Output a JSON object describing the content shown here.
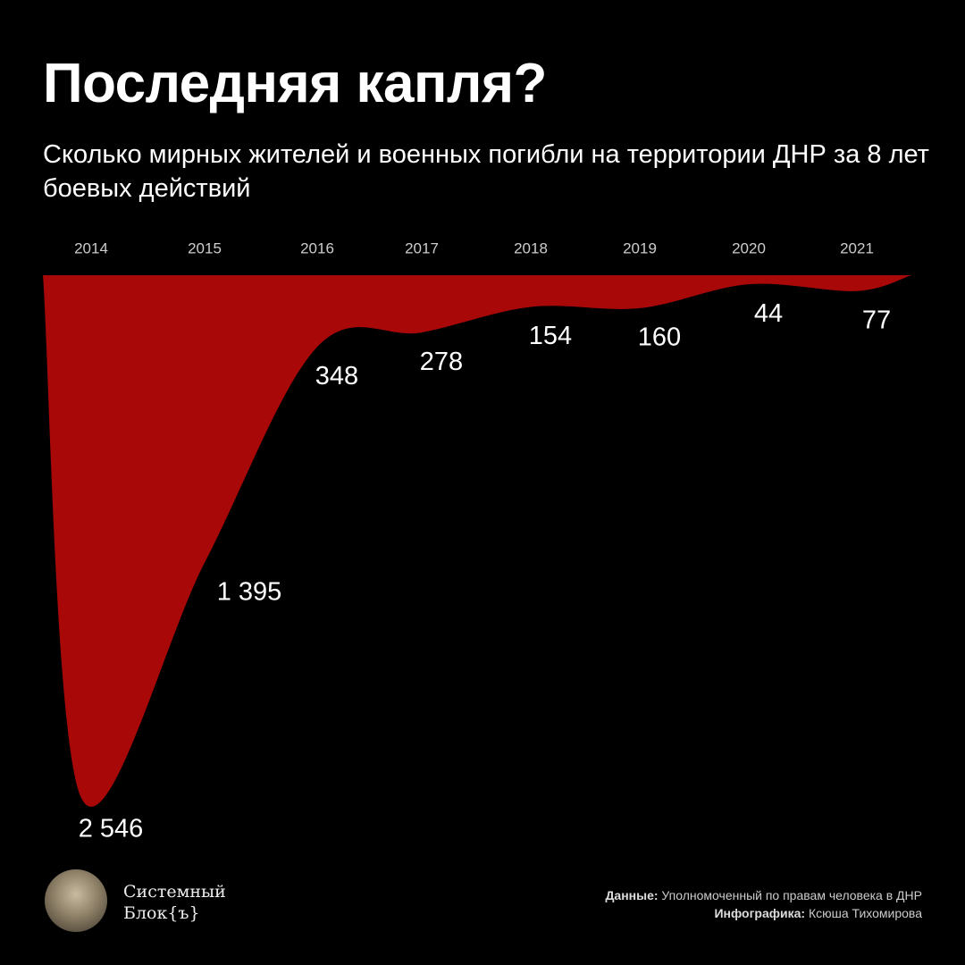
{
  "title": "Последняя капля?",
  "subtitle": "Сколько мирных жителей и военных погибли на территории ДНР за 8 лет боевых действий",
  "chart_data": {
    "type": "area-down",
    "categories": [
      "2014",
      "2015",
      "2016",
      "2017",
      "2018",
      "2019",
      "2020",
      "2021"
    ],
    "values": [
      2546,
      1395,
      348,
      278,
      154,
      160,
      44,
      77
    ],
    "value_labels": [
      "2 546",
      "1 395",
      "348",
      "278",
      "154",
      "160",
      "44",
      "77"
    ],
    "color": "#a80808"
  },
  "logo": {
    "line1": "Системный",
    "line2": "Блок{ъ}"
  },
  "credits": {
    "source_label": "Данные:",
    "source": "Уполномоченный по правам человека в ДНР",
    "author_label": "Инфографика:",
    "author": "Ксюша Тихомирова"
  }
}
